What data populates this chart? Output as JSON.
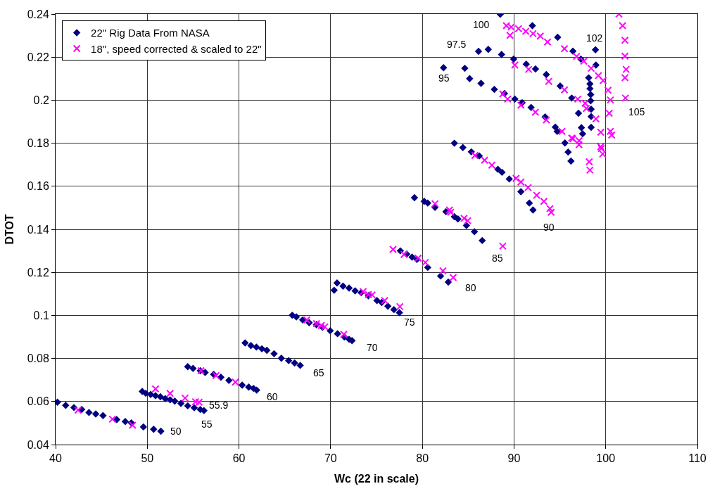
{
  "chart_data": {
    "type": "scatter",
    "xlabel": "Wc (22 in scale)",
    "ylabel": "DTOT",
    "xlim": [
      40,
      110
    ],
    "xticks": [
      40,
      50,
      60,
      70,
      80,
      90,
      100,
      110
    ],
    "ylim": [
      0.04,
      0.24
    ],
    "yticks": [
      0.04,
      0.06,
      0.08,
      0.1,
      0.12,
      0.14,
      0.16,
      0.18,
      0.2,
      0.22,
      0.24
    ],
    "grid": true,
    "legend": "top left",
    "series": [
      {
        "name": "22\" Rig Data From NASA",
        "color": "#000080",
        "marker": "diamond",
        "x": [
          40.2,
          41.1,
          42.0,
          42.85,
          43.64,
          44.38,
          45.17,
          46.67,
          47.6,
          48.26,
          49.58,
          50.69,
          51.48,
          49.45,
          49.84,
          50.37,
          50.9,
          51.43,
          51.96,
          52.49,
          53.0,
          53.67,
          54.41,
          55.12,
          55.78,
          56.18,
          54.41,
          54.99,
          55.78,
          56.31,
          57.24,
          58.03,
          58.9,
          60.35,
          61.06,
          61.59,
          61.93,
          60.67,
          61.3,
          61.9,
          62.5,
          63.04,
          63.83,
          64.62,
          65.42,
          66.07,
          66.68,
          65.81,
          66.26,
          66.95,
          67.66,
          68.45,
          69.11,
          69.95,
          70.75,
          71.49,
          72.01,
          72.33,
          70.38,
          70.7,
          71.35,
          72.01,
          72.67,
          73.33,
          74.12,
          75.05,
          75.57,
          76.24,
          76.9,
          77.5,
          77.6,
          78.3,
          78.88,
          79.41,
          80.59,
          81.99,
          82.83,
          79.14,
          80.2,
          80.59,
          81.38,
          82.57,
          83.49,
          83.88,
          84.81,
          85.68,
          86.53,
          83.49,
          84.42,
          85.34,
          86.21,
          88.24,
          88.69,
          89.48,
          90.75,
          91.67,
          92.07,
          82.31,
          84.63,
          85.16,
          86.4,
          87.85,
          88.96,
          90.09,
          90.88,
          91.86,
          93.39,
          94.5,
          94.71,
          95.55,
          95.9,
          96.21,
          86.13,
          87.19,
          88.64,
          89.96,
          91.33,
          92.34,
          93.52,
          95.03,
          96.29,
          97.03,
          97.35,
          97.48,
          88.5,
          92.0,
          94.76,
          96.42,
          97.29,
          98.14,
          98.28,
          98.28,
          98.36,
          98.36,
          98.41,
          98.41,
          98.41,
          98.93,
          98.88
        ],
        "values": [
          0.0597,
          0.0582,
          0.0572,
          0.0563,
          0.0549,
          0.0542,
          0.0535,
          0.0516,
          0.0507,
          0.0501,
          0.0482,
          0.0471,
          0.0462,
          0.0647,
          0.0638,
          0.0633,
          0.0627,
          0.0622,
          0.0613,
          0.0608,
          0.0602,
          0.0591,
          0.058,
          0.0571,
          0.0563,
          0.0558,
          0.0762,
          0.0754,
          0.0743,
          0.0735,
          0.0726,
          0.0713,
          0.0698,
          0.0676,
          0.0667,
          0.0661,
          0.0653,
          0.0872,
          0.086,
          0.0853,
          0.0845,
          0.0838,
          0.0822,
          0.0801,
          0.079,
          0.0779,
          0.0768,
          0.1001,
          0.0993,
          0.0979,
          0.0966,
          0.0957,
          0.0945,
          0.0929,
          0.0915,
          0.09,
          0.0889,
          0.0883,
          0.1117,
          0.1151,
          0.1136,
          0.1127,
          0.1114,
          0.1106,
          0.1091,
          0.1069,
          0.106,
          0.1043,
          0.1027,
          0.1013,
          0.13,
          0.1285,
          0.1271,
          0.126,
          0.1223,
          0.1183,
          0.1155,
          0.1547,
          0.153,
          0.1522,
          0.1502,
          0.1482,
          0.1459,
          0.1448,
          0.1418,
          0.1389,
          0.1348,
          0.18,
          0.178,
          0.176,
          0.1741,
          0.1679,
          0.1665,
          0.1634,
          0.1575,
          0.1522,
          0.149,
          0.2151,
          0.2148,
          0.21,
          0.2078,
          0.205,
          0.2031,
          0.2005,
          0.1988,
          0.1966,
          0.1922,
          0.1875,
          0.1855,
          0.1801,
          0.1759,
          0.1717,
          0.2227,
          0.2236,
          0.2212,
          0.2191,
          0.2167,
          0.2145,
          0.2119,
          0.2066,
          0.201,
          0.1939,
          0.1872,
          0.1844,
          0.2399,
          0.2346,
          0.2292,
          0.2228,
          0.2191,
          0.2104,
          0.2076,
          0.2054,
          0.2026,
          0.1997,
          0.1958,
          0.1924,
          0.1874,
          0.2163,
          0.2234
        ]
      },
      {
        "name": "18\", speed corrected & scaled to 22\"",
        "color": "#ff00ff",
        "marker": "cross",
        "x": [
          42.45,
          46.2,
          48.39,
          50.9,
          52.49,
          54.12,
          55.65,
          55.26,
          55.86,
          57.5,
          59.61,
          67.4,
          68.45,
          68.98,
          69.37,
          71.43,
          73.54,
          74.12,
          74.52,
          75.89,
          77.55,
          76.8,
          78.0,
          79.53,
          80.32,
          82.25,
          83.36,
          81.38,
          82.96,
          83.09,
          84.55,
          84.94,
          88.77,
          85.73,
          86.79,
          87.58,
          90.22,
          90.75,
          91.54,
          92.47,
          93.26,
          93.92,
          94.05,
          88.77,
          89.3,
          90.75,
          92.33,
          93.52,
          95.23,
          96.29,
          97.09,
          90.09,
          91.59,
          93.78,
          95.5,
          96.95,
          97.75,
          97.88,
          98.93,
          99.46,
          99.46,
          99.67,
          96.42,
          97.1,
          89.17,
          89.69,
          89.56,
          90.49,
          91.28,
          92.07,
          92.86,
          93.65,
          95.5,
          96.82,
          97.61,
          98.41,
          99.2,
          99.72,
          100.25,
          100.51,
          100.38,
          100.51,
          100.65,
          99.52,
          98.2,
          98.28,
          101.44,
          101.84,
          102.1,
          102.1,
          102.23,
          102.1,
          102.15
        ],
        "values": [
          0.056,
          0.0518,
          0.049,
          0.0659,
          0.0638,
          0.0616,
          0.0597,
          0.0599,
          0.0743,
          0.072,
          0.069,
          0.0979,
          0.0962,
          0.0953,
          0.0947,
          0.0912,
          0.1111,
          0.1097,
          0.1095,
          0.1069,
          0.1041,
          0.1307,
          0.1283,
          0.1266,
          0.1246,
          0.1207,
          0.1176,
          0.1519,
          0.149,
          0.1479,
          0.1451,
          0.144,
          0.1322,
          0.1743,
          0.1721,
          0.1698,
          0.1637,
          0.162,
          0.1594,
          0.1558,
          0.153,
          0.1496,
          0.1479,
          0.2029,
          0.2005,
          0.1977,
          0.1944,
          0.1908,
          0.1855,
          0.1824,
          0.1793,
          0.2163,
          0.2143,
          0.2087,
          0.2048,
          0.2005,
          0.1986,
          0.1961,
          0.1913,
          0.1851,
          0.1784,
          0.175,
          0.1821,
          0.1812,
          0.2346,
          0.234,
          0.2301,
          0.2332,
          0.232,
          0.2309,
          0.2298,
          0.227,
          0.2239,
          0.2203,
          0.2181,
          0.2148,
          0.2114,
          0.2091,
          0.2046,
          0.2001,
          0.1939,
          0.1855,
          0.1838,
          0.1776,
          0.1714,
          0.1675,
          0.24,
          0.2346,
          0.2278,
          0.2205,
          0.2143,
          0.2104,
          0.201
        ]
      }
    ],
    "annotations": [
      {
        "text": "50",
        "x": 51.48,
        "y": 0.0462
      },
      {
        "text": "55",
        "x": 56.18,
        "y": 0.0558
      },
      {
        "text": "55.9",
        "x": 55.65,
        "y": 0.0597
      },
      {
        "text": "60",
        "x": 61.93,
        "y": 0.0653
      },
      {
        "text": "65",
        "x": 66.68,
        "y": 0.0768
      },
      {
        "text": "70",
        "x": 72.33,
        "y": 0.0883
      },
      {
        "text": "75",
        "x": 77.5,
        "y": 0.1013
      },
      {
        "text": "80",
        "x": 83.36,
        "y": 0.1176
      },
      {
        "text": "85",
        "x": 88.77,
        "y": 0.1322
      },
      {
        "text": "90",
        "x": 94.05,
        "y": 0.1479
      },
      {
        "text": "95",
        "x": 82.31,
        "y": 0.2151
      },
      {
        "text": "97.5",
        "x": 86.13,
        "y": 0.2227
      },
      {
        "text": "100",
        "x": 88.5,
        "y": 0.2399
      },
      {
        "text": "102",
        "x": 98.88,
        "y": 0.2234
      },
      {
        "text": "105",
        "x": 102.15,
        "y": 0.201
      }
    ]
  }
}
